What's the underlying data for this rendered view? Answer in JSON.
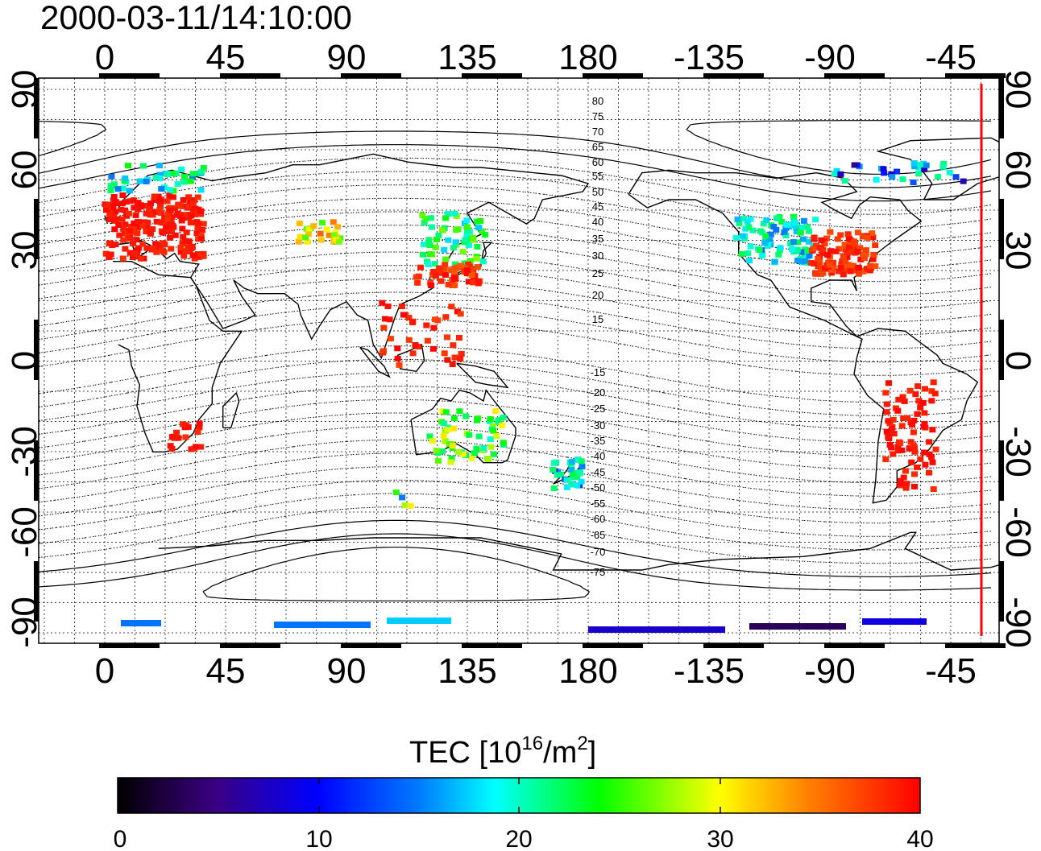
{
  "title": "2000-03-11/14:10:00",
  "map": {
    "top_lon_ticks": [
      "0",
      "45",
      "90",
      "135",
      "180",
      "-135",
      "-90",
      "-45"
    ],
    "bottom_lon_ticks": [
      "0",
      "45",
      "90",
      "135",
      "180",
      "-135",
      "-90",
      "-45"
    ],
    "left_lat_ticks": [
      "90",
      "60",
      "30",
      "0",
      "-30",
      "-60",
      "-90"
    ],
    "right_lat_ticks": [
      "90",
      "60",
      "30",
      "0",
      "-30",
      "-60",
      "-90"
    ],
    "contour_labels": [
      "80",
      "75",
      "70",
      "65",
      "60",
      "55",
      "50",
      "45",
      "40",
      "35",
      "30",
      "25",
      "20",
      "15",
      "-15",
      "-20",
      "-25",
      "-30",
      "-35",
      "-40",
      "-45",
      "-50",
      "-55",
      "-60",
      "-65",
      "-70",
      "-75"
    ],
    "colors": {
      "red_line": "#ff0000",
      "frame": "#000000"
    }
  },
  "colorbar": {
    "label_main": "TEC  [10",
    "label_exp1": "16",
    "label_mid": "/m",
    "label_exp2": "2",
    "label_end": "]",
    "ticks": [
      "0",
      "10",
      "20",
      "30",
      "40"
    ],
    "vmin": 0,
    "vmax": 40,
    "colormap": [
      "#000000",
      "#3a0080",
      "#0000ff",
      "#00ffff",
      "#00ff00",
      "#ffff00",
      "#ff8000",
      "#ff0000"
    ]
  }
}
